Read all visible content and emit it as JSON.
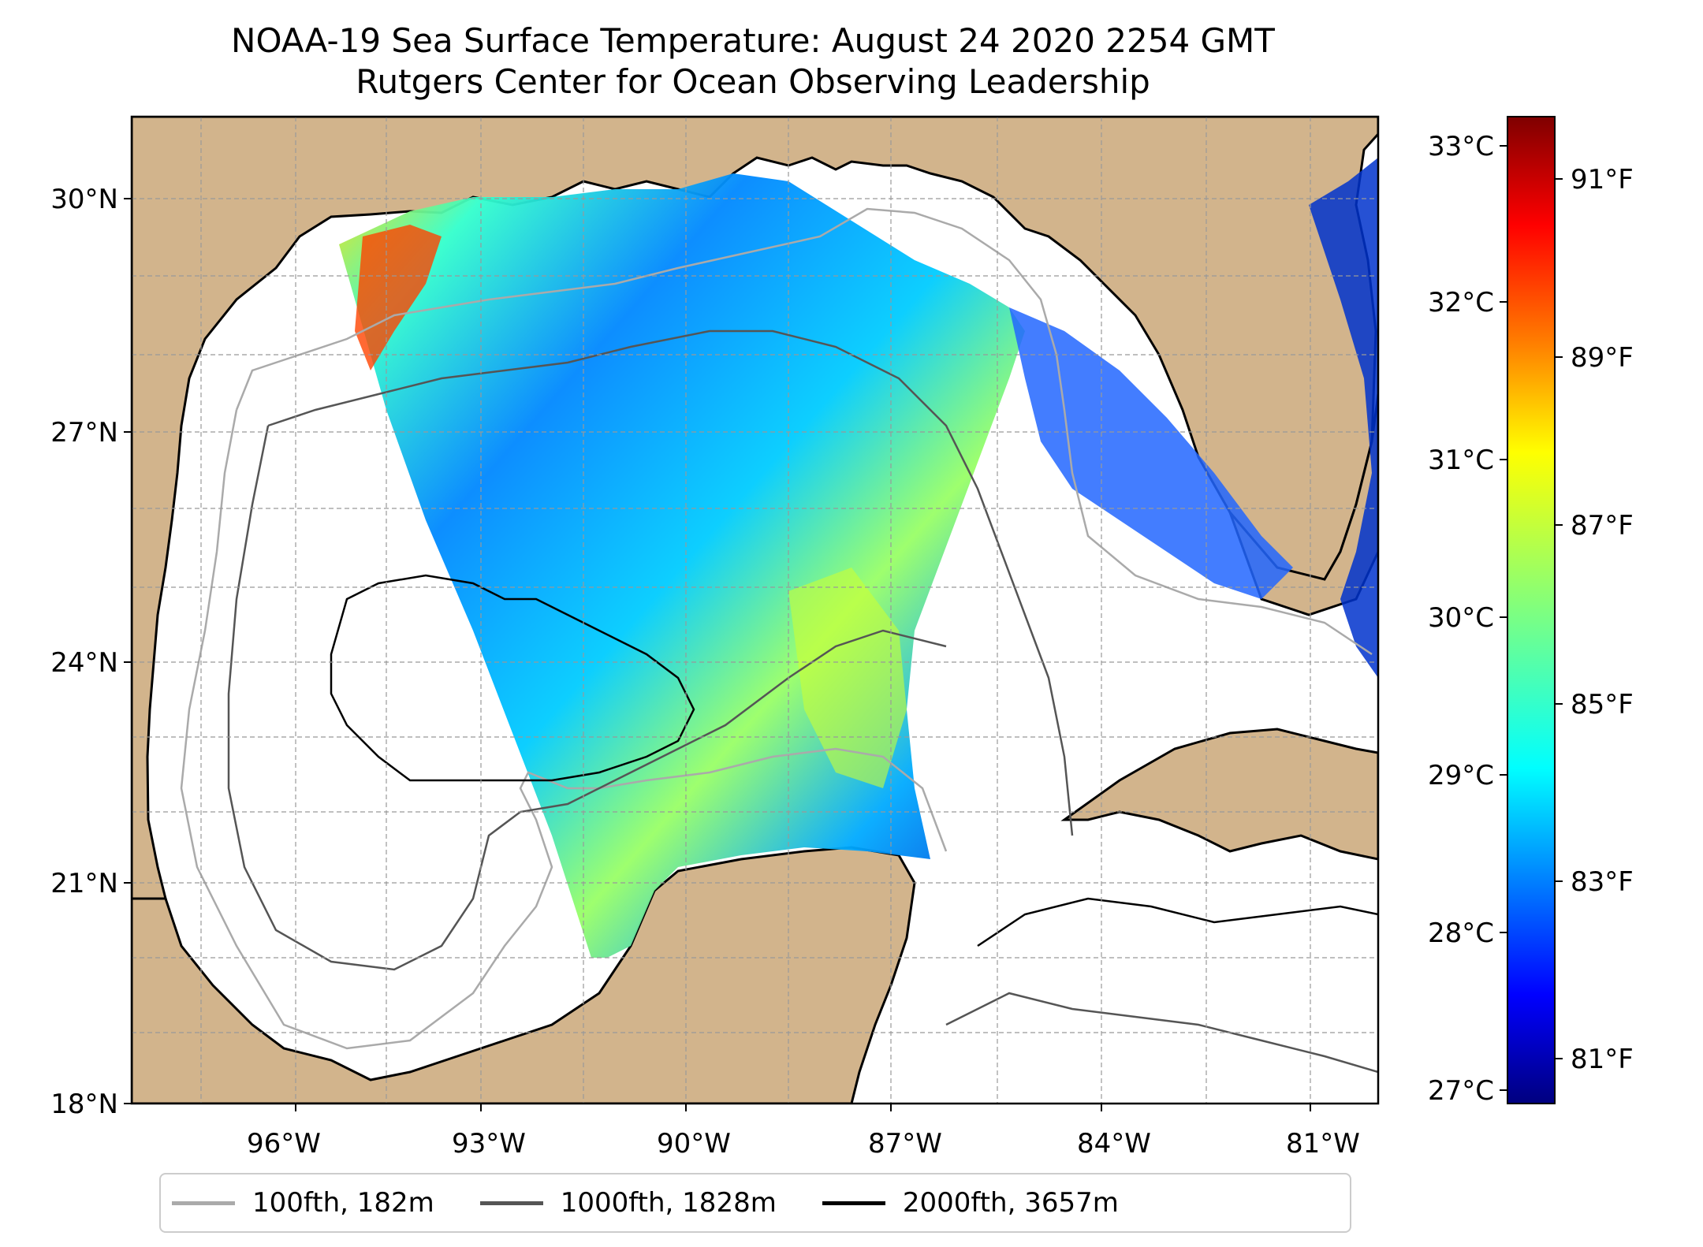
{
  "title": {
    "line1": "NOAA-19 Sea Surface Temperature: August 24 2020 2254 GMT",
    "line2": "Rutgers Center for Ocean Observing Leadership"
  },
  "axes": {
    "lat_ticks": [
      "30°N",
      "27°N",
      "24°N",
      "21°N",
      "18°N"
    ],
    "lon_ticks": [
      "96°W",
      "93°W",
      "90°W",
      "87°W",
      "84°W",
      "81°W"
    ]
  },
  "colorbar": {
    "celsius_ticks": [
      "33°C",
      "32°C",
      "31°C",
      "30°C",
      "29°C",
      "28°C",
      "27°C"
    ],
    "fahrenheit_ticks": [
      "91°F",
      "89°F",
      "87°F",
      "85°F",
      "83°F",
      "81°F"
    ],
    "colormap": [
      "#00007f",
      "#0000ff",
      "#007fff",
      "#00ffff",
      "#7fff7f",
      "#ffff00",
      "#ff7f00",
      "#ff0000",
      "#7f0000"
    ]
  },
  "legend": [
    {
      "label": "100fth, 182m",
      "color": "#aaaaaa"
    },
    {
      "label": "1000fth, 1828m",
      "color": "#555555"
    },
    {
      "label": "2000fth, 3657m",
      "color": "#000000"
    }
  ],
  "colors": {
    "land": "#d2b48c",
    "ocean": "#ffffff",
    "lakes": "#8eaee0"
  }
}
